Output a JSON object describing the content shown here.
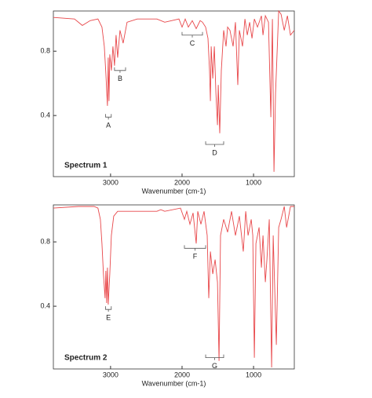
{
  "chart_data": [
    {
      "type": "line",
      "title": "Spectrum 1",
      "x_label": "Wavenumber (cm-1)",
      "color": "#e8474a",
      "xlim": [
        3800,
        430
      ],
      "ylim": [
        0.02,
        1.05
      ],
      "xticks": [
        3000,
        2000,
        1000
      ],
      "yticks": [
        0.4,
        0.8
      ],
      "x": [
        3800,
        3505,
        3395,
        3285,
        3176,
        3120,
        3088,
        3066,
        3044,
        3033,
        3022,
        3011,
        2989,
        2967,
        2945,
        2923,
        2901,
        2868,
        2824,
        2769,
        2626,
        2352,
        2242,
        2044,
        2000,
        1956,
        1912,
        1857,
        1802,
        1747,
        1714,
        1670,
        1637,
        1615,
        1604,
        1593,
        1571,
        1549,
        1527,
        1505,
        1494,
        1473,
        1451,
        1418,
        1385,
        1363,
        1330,
        1286,
        1253,
        1220,
        1198,
        1154,
        1121,
        1088,
        1055,
        1022,
        989,
        945,
        890,
        868,
        835,
        791,
        758,
        736,
        714,
        692,
        648,
        615,
        571,
        527,
        484,
        430
      ],
      "values": [
        1.01,
        1.0,
        0.96,
        0.99,
        1.0,
        0.95,
        0.83,
        0.66,
        0.46,
        0.76,
        0.49,
        0.78,
        0.68,
        0.83,
        0.71,
        0.9,
        0.76,
        0.93,
        0.85,
        0.98,
        1.0,
        1.0,
        0.98,
        1.0,
        0.95,
        1.0,
        0.95,
        0.99,
        0.94,
        0.99,
        0.98,
        0.95,
        0.88,
        0.68,
        0.49,
        0.83,
        0.63,
        0.83,
        0.54,
        0.34,
        0.59,
        0.29,
        0.68,
        0.93,
        0.83,
        0.95,
        0.93,
        0.83,
        0.98,
        0.59,
        0.93,
        0.83,
        1.0,
        0.9,
        0.98,
        0.88,
        1.0,
        0.95,
        1.02,
        0.9,
        1.02,
        0.98,
        0.39,
        1.0,
        0.05,
        0.54,
        1.05,
        1.03,
        0.93,
        1.02,
        0.9,
        0.93
      ],
      "annotations": [
        {
          "text": "A",
          "x_range": [
            3070,
            2990
          ],
          "y": 0.39
        },
        {
          "text": "B",
          "x_range": [
            2945,
            2790
          ],
          "y": 0.68
        },
        {
          "text": "C",
          "x_range": [
            2000,
            1714
          ],
          "y": 0.9
        },
        {
          "text": "D",
          "x_range": [
            1670,
            1418
          ],
          "y": 0.22
        }
      ]
    },
    {
      "type": "line",
      "title": "Spectrum 2",
      "x_label": "Wavenumber (cm-1)",
      "color": "#e8474a",
      "xlim": [
        3800,
        430
      ],
      "ylim": [
        0.01,
        1.03
      ],
      "xticks": [
        3000,
        2000,
        1000
      ],
      "yticks": [
        0.4,
        0.8
      ],
      "x": [
        3800,
        3450,
        3230,
        3176,
        3143,
        3120,
        3100,
        3077,
        3066,
        3055,
        3044,
        3033,
        3011,
        2989,
        2956,
        2901,
        2352,
        2297,
        2242,
        2022,
        1967,
        1934,
        1890,
        1846,
        1802,
        1780,
        1736,
        1692,
        1648,
        1626,
        1604,
        1571,
        1538,
        1505,
        1483,
        1462,
        1418,
        1363,
        1308,
        1253,
        1198,
        1143,
        1110,
        1077,
        1033,
        1011,
        989,
        967,
        923,
        890,
        868,
        835,
        813,
        780,
        747,
        725,
        681,
        648,
        615,
        571,
        538,
        484,
        430
      ],
      "values": [
        1.01,
        1.02,
        1.02,
        1.01,
        0.94,
        0.79,
        0.6,
        0.45,
        0.62,
        0.42,
        0.64,
        0.41,
        0.6,
        0.84,
        0.96,
        0.99,
        0.99,
        1.0,
        0.99,
        1.01,
        0.94,
        0.99,
        0.91,
        0.98,
        0.79,
        0.99,
        0.91,
        0.99,
        0.84,
        0.45,
        0.74,
        0.6,
        0.69,
        0.55,
        0.06,
        0.84,
        0.94,
        0.86,
        0.99,
        0.84,
        0.96,
        0.74,
        0.99,
        0.84,
        0.94,
        0.84,
        0.08,
        0.79,
        0.89,
        0.64,
        0.84,
        0.55,
        0.69,
        0.94,
        0.02,
        0.84,
        0.16,
        0.89,
        0.94,
        1.02,
        0.89,
        1.02,
        1.02
      ],
      "annotations": [
        {
          "text": "E",
          "x_range": [
            3070,
            2990
          ],
          "y": 0.38
        },
        {
          "text": "F",
          "x_range": [
            1967,
            1670
          ],
          "y": 0.76
        },
        {
          "text": "G",
          "x_range": [
            1670,
            1418
          ],
          "y": 0.08
        }
      ]
    }
  ]
}
